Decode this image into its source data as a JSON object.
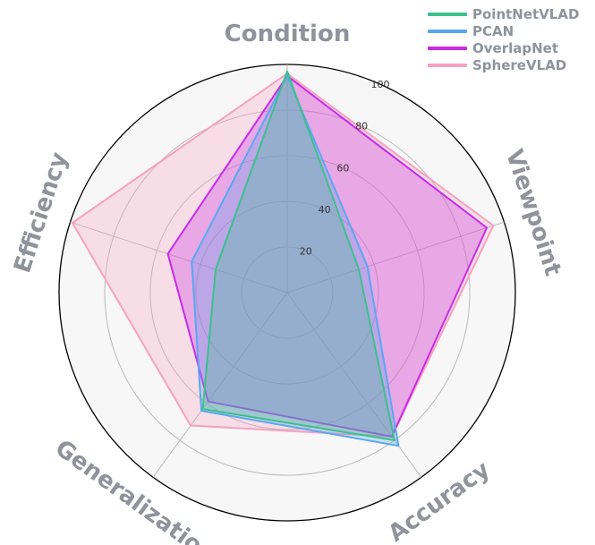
{
  "chart_data": {
    "type": "radar",
    "axes": [
      "Condition",
      "Viewpoint",
      "Accuracy",
      "Generalization",
      "Efficiency"
    ],
    "rlim": [
      0,
      100
    ],
    "rticks": [
      20,
      40,
      60,
      80,
      100
    ],
    "grid": true,
    "legend_position": "top-right",
    "series": [
      {
        "name": "PointNetVLAD",
        "color": "#3cc08e",
        "values": [
          97,
          33,
          80,
          63,
          33
        ]
      },
      {
        "name": "PCAN",
        "color": "#5aa7f0",
        "values": [
          95,
          37,
          83,
          64,
          44
        ]
      },
      {
        "name": "OverlapNet",
        "color": "#c82ce6",
        "values": [
          95,
          92,
          78,
          59,
          55
        ]
      },
      {
        "name": "SphereVLAD",
        "color": "#f6a1c1",
        "values": [
          96,
          95,
          78,
          72,
          99
        ]
      }
    ]
  }
}
